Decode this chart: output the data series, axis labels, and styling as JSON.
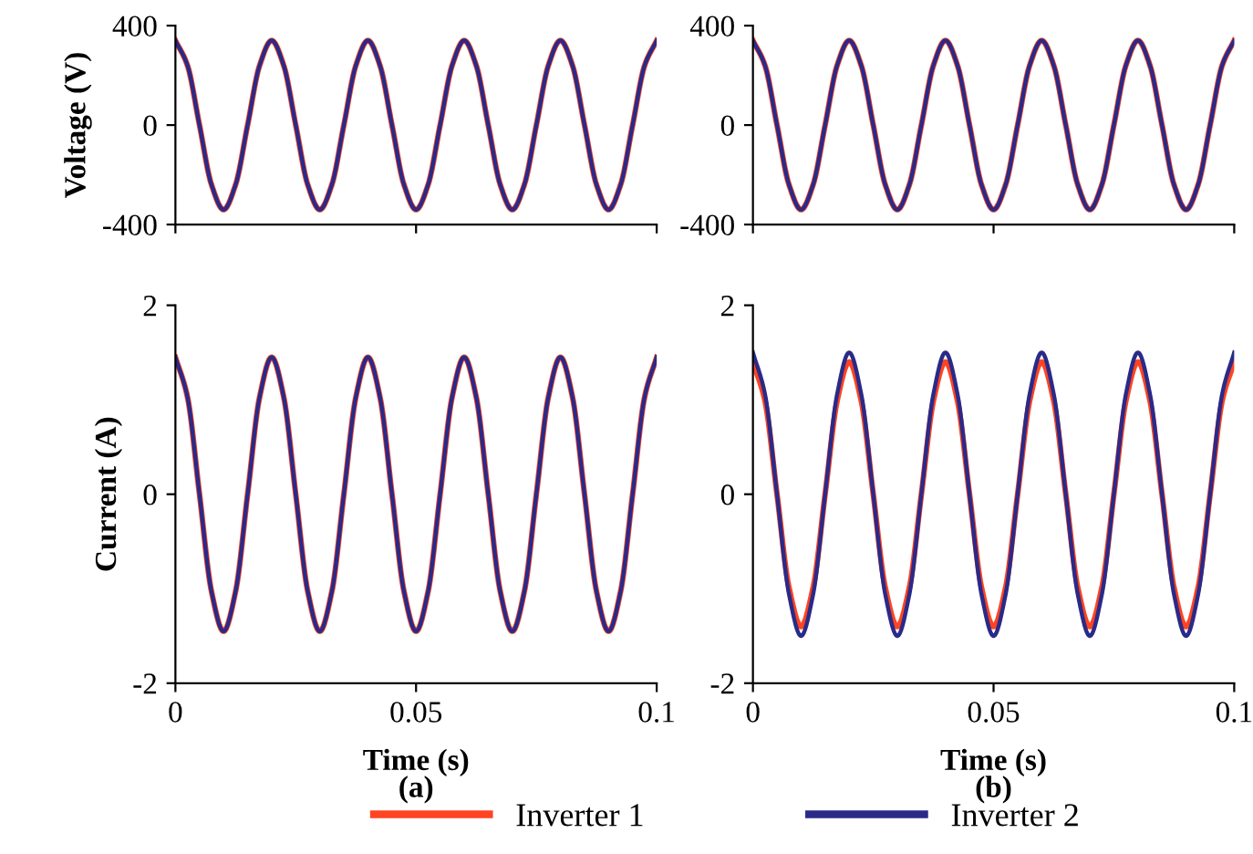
{
  "chart_data": [
    {
      "type": "line",
      "ylabel": "Voltage (V)",
      "legend": "bottom",
      "x": [
        0,
        0.0025,
        0.005,
        0.0075,
        0.01,
        0.0125,
        0.015,
        0.0175,
        0.02,
        0.0225,
        0.025,
        0.0275,
        0.03,
        0.0325,
        0.035,
        0.0375,
        0.04,
        0.0425,
        0.045,
        0.0475,
        0.05,
        0.0525,
        0.055,
        0.0575,
        0.06,
        0.0625,
        0.065,
        0.0675,
        0.07,
        0.0725,
        0.075,
        0.0775,
        0.08,
        0.0825,
        0.085,
        0.0875,
        0.09,
        0.0925,
        0.095,
        0.0975,
        0.1
      ],
      "xlim": [
        0,
        0.1
      ],
      "xticks": [
        0,
        0.05,
        0.1
      ],
      "ylim": [
        -400,
        400
      ],
      "yticks": [
        -400,
        0,
        400
      ],
      "tick_labels": "y",
      "line_style": "solid",
      "series": [
        {
          "name": "Inverter 1",
          "color": "#ff4422",
          "values": [
            340,
            240,
            0,
            -240,
            -340,
            -240,
            0,
            240,
            340,
            240,
            0,
            -240,
            -340,
            -240,
            0,
            240,
            340,
            240,
            0,
            -240,
            -340,
            -240,
            0,
            240,
            340,
            240,
            0,
            -240,
            -340,
            -240,
            0,
            240,
            340,
            240,
            0,
            -240,
            -340,
            -240,
            0,
            240,
            340
          ]
        },
        {
          "name": "Inverter 2",
          "color": "#2a2a88",
          "values": [
            340,
            240,
            0,
            -240,
            -340,
            -240,
            0,
            240,
            340,
            240,
            0,
            -240,
            -340,
            -240,
            0,
            240,
            340,
            240,
            0,
            -240,
            -340,
            -240,
            0,
            240,
            340,
            240,
            0,
            -240,
            -340,
            -240,
            0,
            240,
            340,
            240,
            0,
            -240,
            -340,
            -240,
            0,
            240,
            340
          ]
        }
      ]
    },
    {
      "type": "line",
      "x": [
        0,
        0.0025,
        0.005,
        0.0075,
        0.01,
        0.0125,
        0.015,
        0.0175,
        0.02,
        0.0225,
        0.025,
        0.0275,
        0.03,
        0.0325,
        0.035,
        0.0375,
        0.04,
        0.0425,
        0.045,
        0.0475,
        0.05,
        0.0525,
        0.055,
        0.0575,
        0.06,
        0.0625,
        0.065,
        0.0675,
        0.07,
        0.0725,
        0.075,
        0.0775,
        0.08,
        0.0825,
        0.085,
        0.0875,
        0.09,
        0.0925,
        0.095,
        0.0975,
        0.1
      ],
      "xlim": [
        0,
        0.1
      ],
      "xticks": [
        0,
        0.05,
        0.1
      ],
      "ylim": [
        -400,
        400
      ],
      "yticks": [
        -400,
        0,
        400
      ],
      "tick_labels": "y",
      "line_style": "solid",
      "series": [
        {
          "color": "#ff4422",
          "values": [
            340,
            240,
            0,
            -240,
            -340,
            -240,
            0,
            240,
            340,
            240,
            0,
            -240,
            -340,
            -240,
            0,
            240,
            340,
            240,
            0,
            -240,
            -340,
            -240,
            0,
            240,
            340,
            240,
            0,
            -240,
            -340,
            -240,
            0,
            240,
            340,
            240,
            0,
            -240,
            -340,
            -240,
            0,
            240,
            340
          ]
        },
        {
          "color": "#2a2a88",
          "values": [
            340,
            240,
            0,
            -240,
            -340,
            -240,
            0,
            240,
            340,
            240,
            0,
            -240,
            -340,
            -240,
            0,
            240,
            340,
            240,
            0,
            -240,
            -340,
            -240,
            0,
            240,
            340,
            240,
            0,
            -240,
            -340,
            -240,
            0,
            240,
            340,
            240,
            0,
            -240,
            -340,
            -240,
            0,
            240,
            340
          ]
        }
      ]
    },
    {
      "type": "line",
      "ylabel": "Current (A)",
      "xlabel": "Time (s)",
      "annotations": [
        "(a)"
      ],
      "x": [
        0,
        0.0025,
        0.005,
        0.0075,
        0.01,
        0.0125,
        0.015,
        0.0175,
        0.02,
        0.0225,
        0.025,
        0.0275,
        0.03,
        0.0325,
        0.035,
        0.0375,
        0.04,
        0.0425,
        0.045,
        0.0475,
        0.05,
        0.0525,
        0.055,
        0.0575,
        0.06,
        0.0625,
        0.065,
        0.0675,
        0.07,
        0.0725,
        0.075,
        0.0775,
        0.08,
        0.0825,
        0.085,
        0.0875,
        0.09,
        0.0925,
        0.095,
        0.0975,
        0.1
      ],
      "xlim": [
        0,
        0.1
      ],
      "xticks": [
        0,
        0.05,
        0.1
      ],
      "ylim": [
        -2,
        2
      ],
      "yticks": [
        -2,
        0,
        2
      ],
      "line_style": "solid",
      "series": [
        {
          "color": "#ff4422",
          "values": [
            1.45,
            1.03,
            0,
            -1.03,
            -1.45,
            -1.03,
            0,
            1.03,
            1.45,
            1.03,
            0,
            -1.03,
            -1.45,
            -1.03,
            0,
            1.03,
            1.45,
            1.03,
            0,
            -1.03,
            -1.45,
            -1.03,
            0,
            1.03,
            1.45,
            1.03,
            0,
            -1.03,
            -1.45,
            -1.03,
            0,
            1.03,
            1.45,
            1.03,
            0,
            -1.03,
            -1.45,
            -1.03,
            0,
            1.03,
            1.45
          ]
        },
        {
          "color": "#2a2a88",
          "values": [
            1.45,
            1.03,
            0,
            -1.03,
            -1.45,
            -1.03,
            0,
            1.03,
            1.45,
            1.03,
            0,
            -1.03,
            -1.45,
            -1.03,
            0,
            1.03,
            1.45,
            1.03,
            0,
            -1.03,
            -1.45,
            -1.03,
            0,
            1.03,
            1.45,
            1.03,
            0,
            -1.03,
            -1.45,
            -1.03,
            0,
            1.03,
            1.45,
            1.03,
            0,
            -1.03,
            -1.45,
            -1.03,
            0,
            1.03,
            1.45
          ]
        }
      ]
    },
    {
      "type": "line",
      "xlabel": "Time (s)",
      "annotations": [
        "(b)"
      ],
      "x": [
        0,
        0.0025,
        0.005,
        0.0075,
        0.01,
        0.0125,
        0.015,
        0.0175,
        0.02,
        0.0225,
        0.025,
        0.0275,
        0.03,
        0.0325,
        0.035,
        0.0375,
        0.04,
        0.0425,
        0.045,
        0.0475,
        0.05,
        0.0525,
        0.055,
        0.0575,
        0.06,
        0.0625,
        0.065,
        0.0675,
        0.07,
        0.0725,
        0.075,
        0.0775,
        0.08,
        0.0825,
        0.085,
        0.0875,
        0.09,
        0.0925,
        0.095,
        0.0975,
        0.1
      ],
      "xlim": [
        0,
        0.1
      ],
      "xticks": [
        0,
        0.05,
        0.1
      ],
      "ylim": [
        -2,
        2
      ],
      "yticks": [
        -2,
        0,
        2
      ],
      "line_style": "solid",
      "series": [
        {
          "color": "#ff4422",
          "values": [
            1.4,
            0.99,
            0,
            -0.99,
            -1.4,
            -0.99,
            0,
            0.99,
            1.4,
            0.99,
            0,
            -0.99,
            -1.4,
            -0.99,
            0,
            0.99,
            1.4,
            0.99,
            0,
            -0.99,
            -1.4,
            -0.99,
            0,
            0.99,
            1.4,
            0.99,
            0,
            -0.99,
            -1.4,
            -0.99,
            0,
            0.99,
            1.4,
            0.99,
            0,
            -0.99,
            -1.4,
            -0.99,
            0,
            0.99,
            1.4
          ]
        },
        {
          "color": "#2a2a88",
          "values": [
            1.5,
            1.06,
            0,
            -1.06,
            -1.5,
            -1.06,
            0,
            1.06,
            1.5,
            1.06,
            0,
            -1.06,
            -1.5,
            -1.06,
            0,
            1.06,
            1.5,
            1.06,
            0,
            -1.06,
            -1.5,
            -1.06,
            0,
            1.06,
            1.5,
            1.06,
            0,
            -1.06,
            -1.5,
            -1.06,
            0,
            1.06,
            1.5,
            1.06,
            0,
            -1.06,
            -1.5,
            -1.06,
            0,
            1.06,
            1.5
          ]
        }
      ]
    }
  ]
}
